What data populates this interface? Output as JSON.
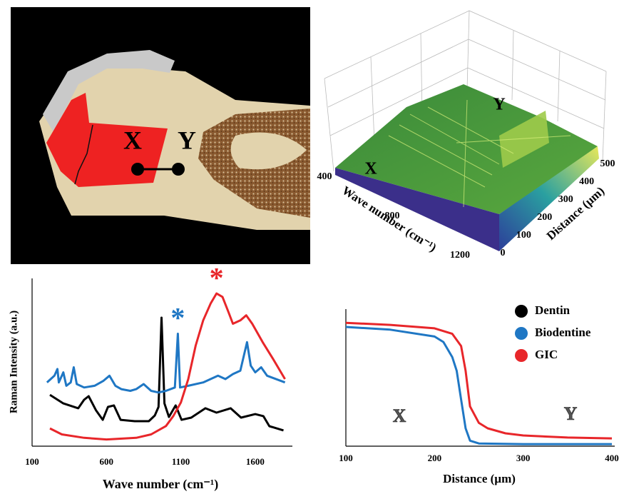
{
  "diagram": {
    "labels": [
      "X",
      "Y"
    ]
  },
  "chart_data": [
    {
      "type": "surface",
      "xlabel": "Wave number (cm⁻¹)",
      "ylabel": "Distance (µm)",
      "xlim": [
        400,
        1200
      ],
      "xticks": [
        400,
        800,
        1200
      ],
      "ylim": [
        0,
        500
      ],
      "yticks": [
        0,
        100,
        200,
        300,
        400,
        500
      ],
      "annotations": [
        "X",
        "Y"
      ]
    },
    {
      "type": "line",
      "xlabel": "Wave number (cm⁻¹)",
      "ylabel": "Raman Intensity (a.u.)",
      "xlim": [
        100,
        1850
      ],
      "xticks": [
        100,
        600,
        1100,
        1600
      ],
      "ylim": [
        0,
        100
      ],
      "annotations": [
        "*",
        "*"
      ],
      "series": [
        {
          "name": "Dentin",
          "color": "#000000",
          "x": [
            220,
            310,
            410,
            450,
            480,
            530,
            575,
            610,
            650,
            695,
            790,
            885,
            925,
            950,
            970,
            990,
            1020,
            1065,
            1105,
            1170,
            1265,
            1340,
            1435,
            1505,
            1600,
            1655,
            1695,
            1790
          ],
          "values": [
            30.6,
            25.5,
            22.6,
            27.7,
            29.8,
            21.3,
            15.7,
            23.4,
            24.3,
            15.7,
            14.9,
            14.9,
            18.3,
            23.4,
            76.6,
            25.5,
            17.4,
            24.3,
            15.7,
            17.0,
            22.6,
            20.0,
            22.6,
            17.0,
            19.1,
            17.9,
            11.9,
            9.4
          ]
        },
        {
          "name": "Biodentine",
          "color": "#1f77c4",
          "x": [
            200,
            250,
            270,
            280,
            310,
            330,
            360,
            380,
            400,
            450,
            520,
            580,
            620,
            660,
            700,
            760,
            800,
            850,
            900,
            950,
            1000,
            1060,
            1080,
            1095,
            1150,
            1250,
            1350,
            1400,
            1450,
            1500,
            1545,
            1570,
            1600,
            1640,
            1680,
            1800
          ],
          "values": [
            38,
            42,
            46,
            38,
            44,
            36,
            38,
            47,
            37,
            35,
            36,
            39,
            42,
            36,
            34,
            33,
            34,
            37,
            33,
            32,
            33,
            35,
            67,
            35,
            36,
            38,
            42,
            40,
            43,
            45,
            62,
            48,
            44,
            47,
            42,
            38
          ]
        },
        {
          "name": "GIC",
          "color": "#e8262a",
          "x": [
            220,
            300,
            450,
            600,
            800,
            900,
            1000,
            1050,
            1100,
            1150,
            1200,
            1250,
            1300,
            1340,
            1380,
            1420,
            1450,
            1500,
            1540,
            1580,
            1650,
            1720,
            1800
          ],
          "values": [
            10.6,
            7,
            5,
            4,
            5,
            7,
            12,
            18,
            26,
            40,
            60,
            75,
            85,
            91,
            89,
            80,
            73,
            75,
            78,
            73,
            62,
            52,
            40
          ]
        }
      ]
    },
    {
      "type": "line",
      "xlabel": "Distance (µm)",
      "xlim": [
        100,
        400
      ],
      "xticks": [
        100,
        200,
        300,
        400
      ],
      "ylim": [
        0,
        100
      ],
      "annotations": [
        "X",
        "Y"
      ],
      "series": [
        {
          "color": "#1f77c4",
          "x": [
            100,
            150,
            200,
            210,
            220,
            225,
            230,
            235,
            240,
            250,
            300,
            400
          ],
          "values": [
            87,
            85,
            80,
            76,
            65,
            55,
            34,
            13,
            4,
            2,
            1.5,
            1.5
          ]
        },
        {
          "color": "#e8262a",
          "x": [
            100,
            150,
            200,
            220,
            230,
            235,
            240,
            250,
            260,
            280,
            300,
            350,
            400
          ],
          "values": [
            90,
            88.5,
            86,
            82,
            73,
            55,
            29,
            17,
            13,
            9.4,
            7.8,
            6.3,
            5.7
          ]
        }
      ]
    }
  ]
}
